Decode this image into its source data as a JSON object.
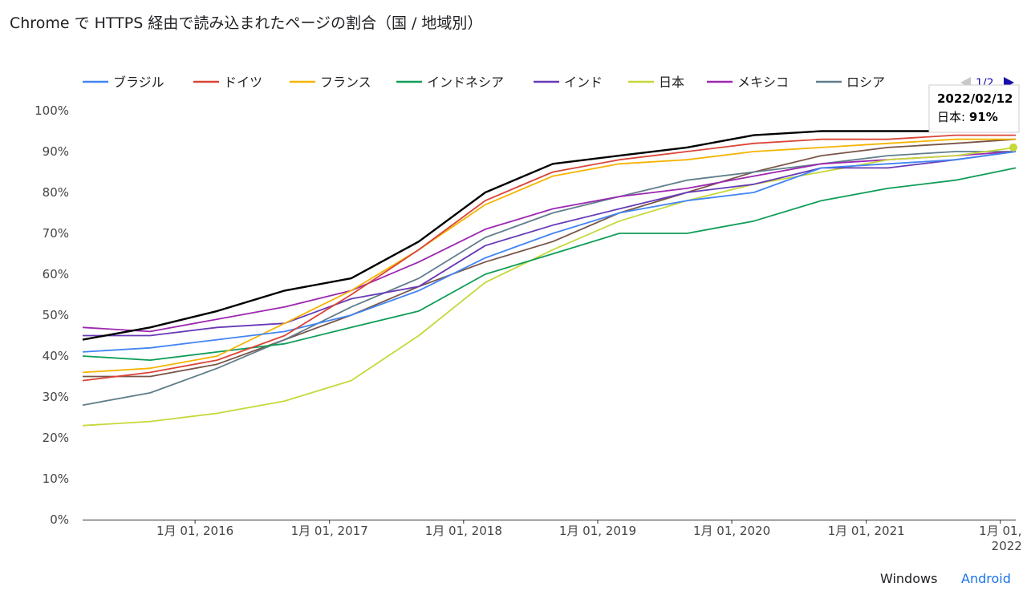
{
  "page": {
    "title": "Chrome で HTTPS 経由で読み込まれたページの割合（国 / 地域別）",
    "platforms": [
      {
        "label": "Windows",
        "color": "#202124",
        "selected": true
      },
      {
        "label": "Android",
        "color": "#1a73e8",
        "selected": false
      }
    ]
  },
  "legend": {
    "pager": "1/2",
    "pager_prev_icon": "triangle-left-icon",
    "pager_next_icon": "triangle-right-icon"
  },
  "tooltip": {
    "date": "2022/02/12",
    "series": "日本",
    "sep": ": ",
    "value": "91%",
    "value_number": 91
  },
  "chart_data": {
    "type": "line",
    "title": "Chrome で HTTPS 経由で読み込まれたページの割合（国 / 地域別）",
    "x_range": [
      "2015-03-01",
      "2022-02-12"
    ],
    "ylim": [
      0,
      100
    ],
    "y_ticks": [
      "0%",
      "10%",
      "20%",
      "30%",
      "40%",
      "50%",
      "60%",
      "70%",
      "80%",
      "90%",
      "100%"
    ],
    "x_ticks": [
      {
        "date": "2016-01-01",
        "label": "1月 01, 2016"
      },
      {
        "date": "2017-01-01",
        "label": "1月 01, 2017"
      },
      {
        "date": "2018-01-01",
        "label": "1月 01, 2018"
      },
      {
        "date": "2019-01-01",
        "label": "1月 01, 2019"
      },
      {
        "date": "2020-01-01",
        "label": "1月 01, 2020"
      },
      {
        "date": "2021-01-01",
        "label": "1月 01, 2021"
      },
      {
        "date": "2022-01-01",
        "label": "1月 01,",
        "label2": "2022"
      }
    ],
    "grid": false,
    "legend_position": "top",
    "x": [
      "2015-03-01",
      "2015-09-01",
      "2016-03-01",
      "2016-09-01",
      "2017-03-01",
      "2017-09-01",
      "2018-03-01",
      "2018-09-01",
      "2019-03-01",
      "2019-09-01",
      "2020-03-01",
      "2020-09-01",
      "2021-03-01",
      "2021-09-01",
      "2022-02-12"
    ],
    "series": [
      {
        "name": "ブラジル",
        "color": "#4285f4",
        "legend": true,
        "values": [
          41,
          42,
          44,
          46,
          50,
          56,
          64,
          70,
          75,
          78,
          80,
          86,
          87,
          88,
          90
        ]
      },
      {
        "name": "ドイツ",
        "color": "#db4437",
        "legend": true,
        "values": [
          34,
          36,
          39,
          45,
          55,
          66,
          78,
          85,
          88,
          90,
          92,
          93,
          93,
          94,
          94
        ]
      },
      {
        "name": "フランス",
        "color": "#f4b400",
        "legend": true,
        "values": [
          36,
          37,
          40,
          48,
          56,
          66,
          77,
          84,
          87,
          88,
          90,
          91,
          92,
          93,
          93
        ]
      },
      {
        "name": "インドネシア",
        "color": "#0f9d58",
        "legend": true,
        "values": [
          40,
          39,
          41,
          43,
          47,
          51,
          60,
          65,
          70,
          70,
          73,
          78,
          81,
          83,
          86
        ]
      },
      {
        "name": "インド",
        "color": "#673ab7",
        "legend": true,
        "values": [
          45,
          45,
          47,
          48,
          54,
          57,
          67,
          72,
          76,
          80,
          82,
          86,
          86,
          88,
          90
        ]
      },
      {
        "name": "日本",
        "color": "#c6d83a",
        "legend": true,
        "values": [
          23,
          24,
          26,
          29,
          34,
          45,
          58,
          66,
          73,
          78,
          82,
          85,
          88,
          89,
          91
        ]
      },
      {
        "name": "メキシコ",
        "color": "#9c27b0",
        "legend": true,
        "values": [
          47,
          46,
          49,
          52,
          56,
          63,
          71,
          76,
          79,
          81,
          84,
          87,
          88,
          89,
          90
        ]
      },
      {
        "name": "ロシア",
        "color": "#607d8b",
        "legend": true,
        "values": [
          28,
          31,
          37,
          44,
          52,
          59,
          69,
          75,
          79,
          83,
          85,
          87,
          89,
          90,
          90
        ]
      },
      {
        "color": "#000000",
        "legend": false,
        "values": [
          44,
          47,
          51,
          56,
          59,
          68,
          80,
          87,
          89,
          91,
          94,
          95,
          95,
          95,
          95
        ]
      },
      {
        "color": "#795548",
        "legend": false,
        "values": [
          35,
          35,
          38,
          44,
          50,
          57,
          63,
          68,
          75,
          80,
          85,
          89,
          91,
          92,
          93
        ]
      }
    ]
  }
}
